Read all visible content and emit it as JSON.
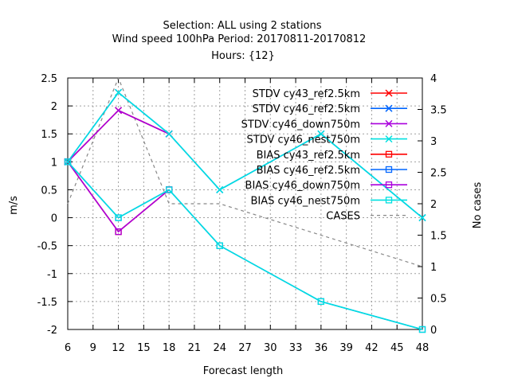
{
  "chart_data": {
    "type": "line",
    "title_lines": [
      "Selection: ALL using     2 stations",
      "Wind speed 100hPa   Period: 20170811-20170812",
      "Hours: {12}"
    ],
    "xlabel": "Forecast length",
    "ylabel": "m/s",
    "y2label": "No cases",
    "xlim": [
      6,
      48
    ],
    "ylim": [
      -2,
      2.5
    ],
    "y2lim": [
      0,
      4
    ],
    "xticks": [
      "6",
      "9",
      "12",
      "15",
      "18",
      "21",
      "24",
      "27",
      "30",
      "33",
      "36",
      "39",
      "42",
      "45",
      "48"
    ],
    "yticks": [
      "-2",
      "-1.5",
      "-1",
      "-0.5",
      "0",
      "0.5",
      "1",
      "1.5",
      "2",
      "2.5"
    ],
    "y2ticks": [
      "0",
      "0.5",
      "1",
      "1.5",
      "2",
      "2.5",
      "3",
      "3.5",
      "4"
    ],
    "grid": true,
    "legend_position": "top-right",
    "x": [
      6,
      12,
      18,
      24,
      36,
      48
    ],
    "series": [
      {
        "name": "STDV cy43_ref2.5km",
        "color": "#ff0000",
        "marker": "x",
        "values": [
          1.0,
          1.92,
          1.5,
          null,
          null,
          null
        ]
      },
      {
        "name": "STDV cy46_ref2.5km",
        "color": "#0066ff",
        "marker": "x",
        "values": [
          1.0,
          2.24,
          1.5,
          0.5,
          1.5,
          0.0
        ]
      },
      {
        "name": "STDV cy46_down750m",
        "color": "#aa00dd",
        "marker": "x",
        "values": [
          1.0,
          1.92,
          1.5,
          null,
          null,
          null
        ]
      },
      {
        "name": "STDV cy46_nest750m",
        "color": "#00e0e0",
        "marker": "x",
        "values": [
          1.0,
          2.24,
          1.5,
          0.5,
          1.5,
          0.0
        ]
      },
      {
        "name": "BIAS cy43_ref2.5km",
        "color": "#ff0000",
        "marker": "square",
        "values": [
          1.0,
          -0.25,
          0.5,
          null,
          null,
          null
        ]
      },
      {
        "name": "BIAS cy46_ref2.5km",
        "color": "#0066ff",
        "marker": "square",
        "values": [
          1.0,
          0.0,
          0.5,
          -0.5,
          -1.5,
          -2.0
        ]
      },
      {
        "name": "BIAS cy46_down750m",
        "color": "#aa00dd",
        "marker": "square",
        "values": [
          1.0,
          -0.25,
          0.5,
          null,
          null,
          null
        ]
      },
      {
        "name": "BIAS cy46_nest750m",
        "color": "#00e0e0",
        "marker": "square",
        "values": [
          1.0,
          0.0,
          0.5,
          -0.5,
          -1.5,
          -2.0
        ]
      }
    ],
    "cases": {
      "name": "CASES",
      "color": "#888888",
      "axis": "y2",
      "x": [
        6,
        12,
        18,
        24,
        48
      ],
      "values": [
        2.0,
        4.0,
        2.0,
        2.0,
        1.0
      ]
    }
  }
}
